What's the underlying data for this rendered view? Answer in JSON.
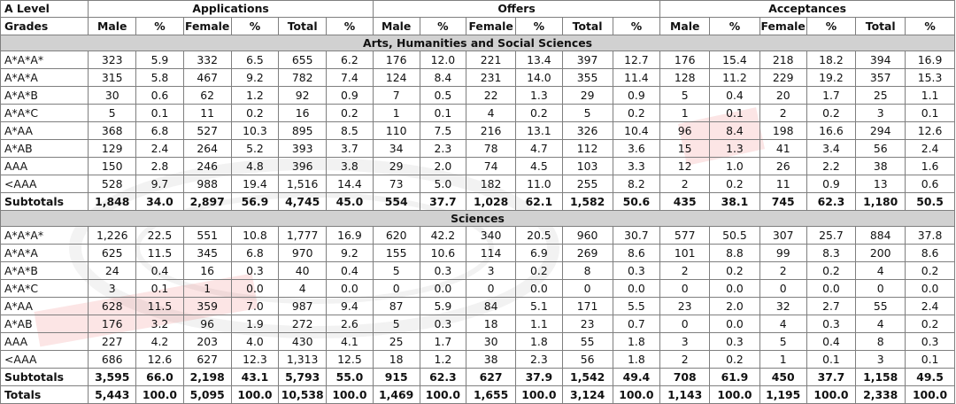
{
  "header": {
    "grade_label_1": "A Level",
    "grade_label_2": "Grades",
    "groups": [
      "Applications",
      "Offers",
      "Acceptances"
    ],
    "subcols": [
      "Male",
      "%",
      "Female",
      "%",
      "Total",
      "%"
    ]
  },
  "sections": [
    {
      "title": "Arts, Humanities and Social Sciences",
      "rows": [
        {
          "grade": "A*A*A*",
          "values": [
            "323",
            "5.9",
            "332",
            "6.5",
            "655",
            "6.2",
            "176",
            "12.0",
            "221",
            "13.4",
            "397",
            "12.7",
            "176",
            "15.4",
            "218",
            "18.2",
            "394",
            "16.9"
          ]
        },
        {
          "grade": "A*A*A",
          "values": [
            "315",
            "5.8",
            "467",
            "9.2",
            "782",
            "7.4",
            "124",
            "8.4",
            "231",
            "14.0",
            "355",
            "11.4",
            "128",
            "11.2",
            "229",
            "19.2",
            "357",
            "15.3"
          ]
        },
        {
          "grade": "A*A*B",
          "values": [
            "30",
            "0.6",
            "62",
            "1.2",
            "92",
            "0.9",
            "7",
            "0.5",
            "22",
            "1.3",
            "29",
            "0.9",
            "5",
            "0.4",
            "20",
            "1.7",
            "25",
            "1.1"
          ]
        },
        {
          "grade": "A*A*C",
          "values": [
            "5",
            "0.1",
            "11",
            "0.2",
            "16",
            "0.2",
            "1",
            "0.1",
            "4",
            "0.2",
            "5",
            "0.2",
            "1",
            "0.1",
            "2",
            "0.2",
            "3",
            "0.1"
          ]
        },
        {
          "grade": "A*AA",
          "values": [
            "368",
            "6.8",
            "527",
            "10.3",
            "895",
            "8.5",
            "110",
            "7.5",
            "216",
            "13.1",
            "326",
            "10.4",
            "96",
            "8.4",
            "198",
            "16.6",
            "294",
            "12.6"
          ]
        },
        {
          "grade": "A*AB",
          "values": [
            "129",
            "2.4",
            "264",
            "5.2",
            "393",
            "3.7",
            "34",
            "2.3",
            "78",
            "4.7",
            "112",
            "3.6",
            "15",
            "1.3",
            "41",
            "3.4",
            "56",
            "2.4"
          ]
        },
        {
          "grade": "AAA",
          "values": [
            "150",
            "2.8",
            "246",
            "4.8",
            "396",
            "3.8",
            "29",
            "2.0",
            "74",
            "4.5",
            "103",
            "3.3",
            "12",
            "1.0",
            "26",
            "2.2",
            "38",
            "1.6"
          ]
        },
        {
          "grade": "<AAA",
          "values": [
            "528",
            "9.7",
            "988",
            "19.4",
            "1,516",
            "14.4",
            "73",
            "5.0",
            "182",
            "11.0",
            "255",
            "8.2",
            "2",
            "0.2",
            "11",
            "0.9",
            "13",
            "0.6"
          ]
        }
      ],
      "subtotal": {
        "label": "Subtotals",
        "values": [
          "1,848",
          "34.0",
          "2,897",
          "56.9",
          "4,745",
          "45.0",
          "554",
          "37.7",
          "1,028",
          "62.1",
          "1,582",
          "50.6",
          "435",
          "38.1",
          "745",
          "62.3",
          "1,180",
          "50.5"
        ]
      }
    },
    {
      "title": "Sciences",
      "rows": [
        {
          "grade": "A*A*A*",
          "values": [
            "1,226",
            "22.5",
            "551",
            "10.8",
            "1,777",
            "16.9",
            "620",
            "42.2",
            "340",
            "20.5",
            "960",
            "30.7",
            "577",
            "50.5",
            "307",
            "25.7",
            "884",
            "37.8"
          ]
        },
        {
          "grade": "A*A*A",
          "values": [
            "625",
            "11.5",
            "345",
            "6.8",
            "970",
            "9.2",
            "155",
            "10.6",
            "114",
            "6.9",
            "269",
            "8.6",
            "101",
            "8.8",
            "99",
            "8.3",
            "200",
            "8.6"
          ]
        },
        {
          "grade": "A*A*B",
          "values": [
            "24",
            "0.4",
            "16",
            "0.3",
            "40",
            "0.4",
            "5",
            "0.3",
            "3",
            "0.2",
            "8",
            "0.3",
            "2",
            "0.2",
            "2",
            "0.2",
            "4",
            "0.2"
          ]
        },
        {
          "grade": "A*A*C",
          "values": [
            "3",
            "0.1",
            "1",
            "0.0",
            "4",
            "0.0",
            "0",
            "0.0",
            "0",
            "0.0",
            "0",
            "0.0",
            "0",
            "0.0",
            "0",
            "0.0",
            "0",
            "0.0"
          ]
        },
        {
          "grade": "A*AA",
          "values": [
            "628",
            "11.5",
            "359",
            "7.0",
            "987",
            "9.4",
            "87",
            "5.9",
            "84",
            "5.1",
            "171",
            "5.5",
            "23",
            "2.0",
            "32",
            "2.7",
            "55",
            "2.4"
          ]
        },
        {
          "grade": "A*AB",
          "values": [
            "176",
            "3.2",
            "96",
            "1.9",
            "272",
            "2.6",
            "5",
            "0.3",
            "18",
            "1.1",
            "23",
            "0.7",
            "0",
            "0.0",
            "4",
            "0.3",
            "4",
            "0.2"
          ]
        },
        {
          "grade": "AAA",
          "values": [
            "227",
            "4.2",
            "203",
            "4.0",
            "430",
            "4.1",
            "25",
            "1.7",
            "30",
            "1.8",
            "55",
            "1.8",
            "3",
            "0.3",
            "5",
            "0.4",
            "8",
            "0.3"
          ]
        },
        {
          "grade": "<AAA",
          "values": [
            "686",
            "12.6",
            "627",
            "12.3",
            "1,313",
            "12.5",
            "18",
            "1.2",
            "38",
            "2.3",
            "56",
            "1.8",
            "2",
            "0.2",
            "1",
            "0.1",
            "3",
            "0.1"
          ]
        }
      ],
      "subtotal": {
        "label": "Subtotals",
        "values": [
          "3,595",
          "66.0",
          "2,198",
          "43.1",
          "5,793",
          "55.0",
          "915",
          "62.3",
          "627",
          "37.9",
          "1,542",
          "49.4",
          "708",
          "61.9",
          "450",
          "37.7",
          "1,158",
          "49.5"
        ]
      }
    }
  ],
  "totals": {
    "label": "Totals",
    "values": [
      "5,443",
      "100.0",
      "5,095",
      "100.0",
      "10,538",
      "100.0",
      "1,469",
      "100.0",
      "1,655",
      "100.0",
      "3,124",
      "100.0",
      "1,143",
      "100.0",
      "1,195",
      "100.0",
      "2,338",
      "100.0"
    ]
  },
  "colors": {
    "section_bg": "#d1d1d1",
    "border": "#7f7f7f",
    "watermark_red": "#e23b3b"
  }
}
